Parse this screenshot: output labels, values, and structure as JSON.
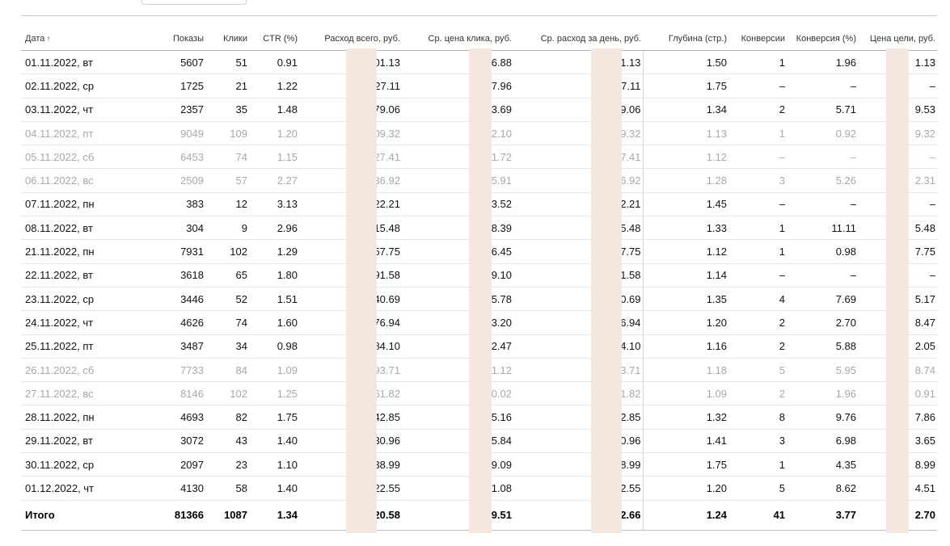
{
  "columns": {
    "date": "Дата",
    "shows": "Показы",
    "clicks": "Клики",
    "ctr": "CTR (%)",
    "spend": "Расход всего, руб.",
    "cpc": "Ср. цена клика, руб.",
    "daily": "Ср. расход за день, руб.",
    "depth": "Глубина (стр.)",
    "conversions": "Конверсии",
    "conv_rate": "Конверсия (%)",
    "goal_cost": "Цена цели, руб."
  },
  "rows": [
    {
      "date": "01.11.2022, вт",
      "shows": "5607",
      "clicks": "51",
      "ctr": "0.91",
      "spend": "01.13",
      "cpc": "6.88",
      "daily": "1.13",
      "depth": "1.50",
      "conversions": "1",
      "conv_rate": "1.96",
      "goal_cost": "1.13",
      "weekend": false
    },
    {
      "date": "02.11.2022, ср",
      "shows": "1725",
      "clicks": "21",
      "ctr": "1.22",
      "spend": "27.11",
      "cpc": "7.96",
      "daily": "7.11",
      "depth": "1.75",
      "conversions": "–",
      "conv_rate": "–",
      "goal_cost": "–",
      "weekend": false
    },
    {
      "date": "03.11.2022, чт",
      "shows": "2357",
      "clicks": "35",
      "ctr": "1.48",
      "spend": "79.06",
      "cpc": "3.69",
      "daily": "9.06",
      "depth": "1.34",
      "conversions": "2",
      "conv_rate": "5.71",
      "goal_cost": "9.53",
      "weekend": false
    },
    {
      "date": "04.11.2022, пт",
      "shows": "9049",
      "clicks": "109",
      "ctr": "1.20",
      "spend": "09.32",
      "cpc": "2.10",
      "daily": "9.32",
      "depth": "1.13",
      "conversions": "1",
      "conv_rate": "0.92",
      "goal_cost": "9.32",
      "weekend": true
    },
    {
      "date": "05.11.2022, сб",
      "shows": "6453",
      "clicks": "74",
      "ctr": "1.15",
      "spend": "27.41",
      "cpc": "1.72",
      "daily": "7.41",
      "depth": "1.12",
      "conversions": "–",
      "conv_rate": "–",
      "goal_cost": "–",
      "weekend": true
    },
    {
      "date": "06.11.2022, вс",
      "shows": "2509",
      "clicks": "57",
      "ctr": "2.27",
      "spend": "36.92",
      "cpc": "5.91",
      "daily": "6.92",
      "depth": "1.28",
      "conversions": "3",
      "conv_rate": "5.26",
      "goal_cost": "2.31",
      "weekend": true
    },
    {
      "date": "07.11.2022, пн",
      "shows": "383",
      "clicks": "12",
      "ctr": "3.13",
      "spend": "22.21",
      "cpc": "3.52",
      "daily": "2.21",
      "depth": "1.45",
      "conversions": "–",
      "conv_rate": "–",
      "goal_cost": "–",
      "weekend": false
    },
    {
      "date": "08.11.2022, вт",
      "shows": "304",
      "clicks": "9",
      "ctr": "2.96",
      "spend": "15.48",
      "cpc": "8.39",
      "daily": "5.48",
      "depth": "1.33",
      "conversions": "1",
      "conv_rate": "11.11",
      "goal_cost": "5.48",
      "weekend": false
    },
    {
      "date": "21.11.2022, пн",
      "shows": "7931",
      "clicks": "102",
      "ctr": "1.29",
      "spend": "57.75",
      "cpc": "6.45",
      "daily": "7.75",
      "depth": "1.12",
      "conversions": "1",
      "conv_rate": "0.98",
      "goal_cost": "7.75",
      "weekend": false
    },
    {
      "date": "22.11.2022, вт",
      "shows": "3618",
      "clicks": "65",
      "ctr": "1.80",
      "spend": "91.58",
      "cpc": "9.10",
      "daily": "1.58",
      "depth": "1.14",
      "conversions": "–",
      "conv_rate": "–",
      "goal_cost": "–",
      "weekend": false
    },
    {
      "date": "23.11.2022, ср",
      "shows": "3446",
      "clicks": "52",
      "ctr": "1.51",
      "spend": "40.69",
      "cpc": "5.78",
      "daily": "0.69",
      "depth": "1.35",
      "conversions": "4",
      "conv_rate": "7.69",
      "goal_cost": "5.17",
      "weekend": false
    },
    {
      "date": "24.11.2022, чт",
      "shows": "4626",
      "clicks": "74",
      "ctr": "1.60",
      "spend": "76.94",
      "cpc": "3.20",
      "daily": "6.94",
      "depth": "1.20",
      "conversions": "2",
      "conv_rate": "2.70",
      "goal_cost": "8.47",
      "weekend": false
    },
    {
      "date": "25.11.2022, пт",
      "shows": "3487",
      "clicks": "34",
      "ctr": "0.98",
      "spend": "84.10",
      "cpc": "2.47",
      "daily": "4.10",
      "depth": "1.16",
      "conversions": "2",
      "conv_rate": "5.88",
      "goal_cost": "2.05",
      "weekend": false
    },
    {
      "date": "26.11.2022, сб",
      "shows": "7733",
      "clicks": "84",
      "ctr": "1.09",
      "spend": "93.71",
      "cpc": "1.12",
      "daily": "3.71",
      "depth": "1.18",
      "conversions": "5",
      "conv_rate": "5.95",
      "goal_cost": "8.74",
      "weekend": true
    },
    {
      "date": "27.11.2022, вс",
      "shows": "8146",
      "clicks": "102",
      "ctr": "1.25",
      "spend": "61.82",
      "cpc": "0.02",
      "daily": "1.82",
      "depth": "1.09",
      "conversions": "2",
      "conv_rate": "1.96",
      "goal_cost": "0.91",
      "weekend": true
    },
    {
      "date": "28.11.2022, пн",
      "shows": "4693",
      "clicks": "82",
      "ctr": "1.75",
      "spend": "42.85",
      "cpc": "5.16",
      "daily": "2.85",
      "depth": "1.32",
      "conversions": "8",
      "conv_rate": "9.76",
      "goal_cost": "7.86",
      "weekend": false
    },
    {
      "date": "29.11.2022, вт",
      "shows": "3072",
      "clicks": "43",
      "ctr": "1.40",
      "spend": "30.96",
      "cpc": "5.84",
      "daily": "0.96",
      "depth": "1.41",
      "conversions": "3",
      "conv_rate": "6.98",
      "goal_cost": "3.65",
      "weekend": false
    },
    {
      "date": "30.11.2022, ср",
      "shows": "2097",
      "clicks": "23",
      "ctr": "1.10",
      "spend": "38.99",
      "cpc": "9.09",
      "daily": "8.99",
      "depth": "1.75",
      "conversions": "1",
      "conv_rate": "4.35",
      "goal_cost": "8.99",
      "weekend": false
    },
    {
      "date": "01.12.2022, чт",
      "shows": "4130",
      "clicks": "58",
      "ctr": "1.40",
      "spend": "22.55",
      "cpc": "1.08",
      "daily": "2.55",
      "depth": "1.20",
      "conversions": "5",
      "conv_rate": "8.62",
      "goal_cost": "4.51",
      "weekend": false
    }
  ],
  "total": {
    "label": "Итого",
    "shows": "81366",
    "clicks": "1087",
    "ctr": "1.34",
    "spend": "20.58",
    "cpc": "9.51",
    "daily": "2.66",
    "depth": "1.24",
    "conversions": "41",
    "conv_rate": "3.77",
    "goal_cost": "2.70"
  },
  "colors": {
    "redaction_mask": "#f5e6de",
    "weekend_text": "#a8a8a8"
  }
}
